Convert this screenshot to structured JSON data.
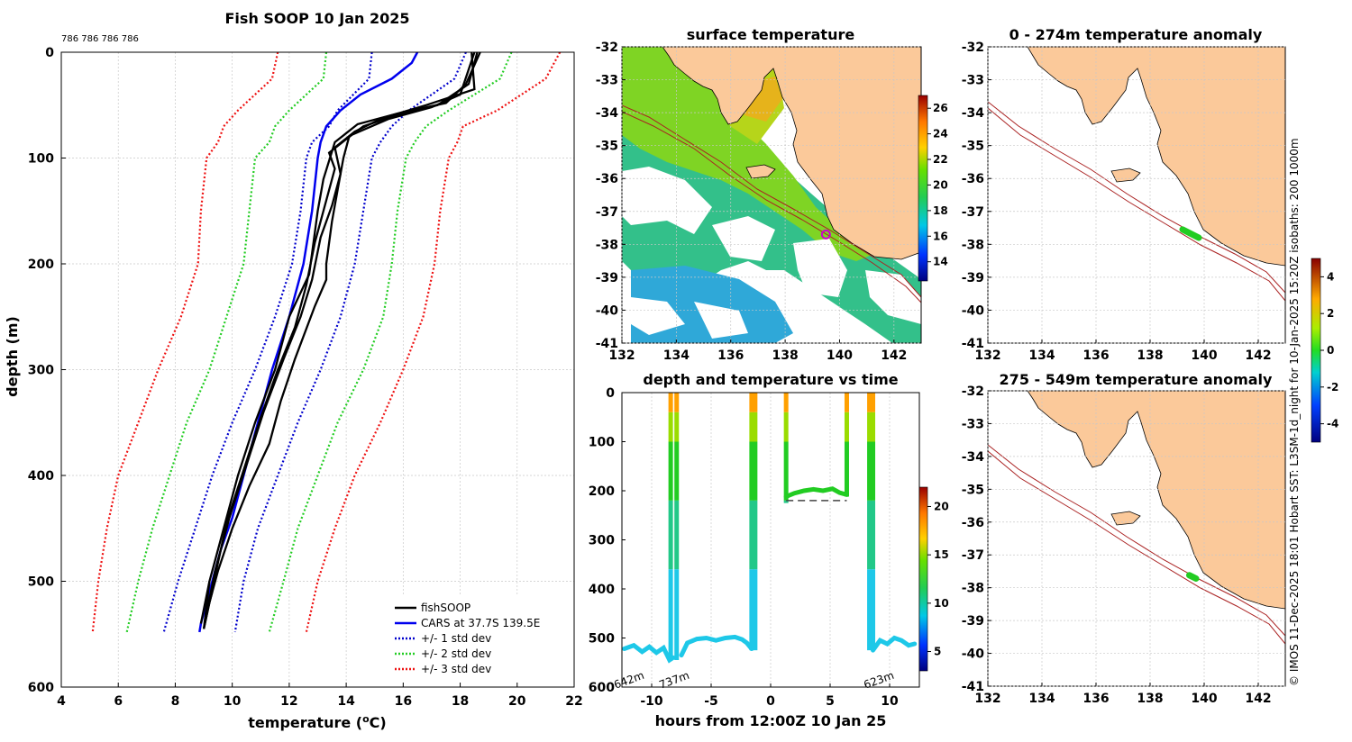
{
  "chart_data": [
    {
      "id": "profile",
      "type": "line",
      "title": "Fish SOOP 10 Jan 2025",
      "annotation": "786 786 786 786",
      "xlabel": "temperature (",
      "xlabel_sup": "o",
      "xlabel_end": "C)",
      "ylabel": "depth (m)",
      "xlim": [
        4,
        22
      ],
      "ylim": [
        600,
        0
      ],
      "xticks": [
        4,
        6,
        8,
        10,
        12,
        14,
        16,
        18,
        20,
        22
      ],
      "yticks": [
        0,
        100,
        200,
        300,
        400,
        500,
        600
      ],
      "legend": [
        "fishSOOP",
        "CARS at 37.7S 139.5E",
        "+/- 1 std dev",
        "+/- 2 std dev",
        "+/- 3 std dev"
      ],
      "colors": [
        "#000000",
        "#0000ee",
        "#0000cc",
        "#22cc22",
        "#ee1111"
      ],
      "cars": {
        "t": [
          16.5,
          16.3,
          15.6,
          14.5,
          13.8,
          13.3,
          13.1,
          13.0,
          12.8,
          12.5,
          12.0,
          11.4,
          10.9,
          10.4,
          10.0,
          9.6,
          9.3,
          9.1,
          8.9,
          8.85
        ],
        "d": [
          0,
          10,
          25,
          40,
          55,
          70,
          85,
          100,
          150,
          200,
          250,
          300,
          350,
          400,
          440,
          470,
          500,
          520,
          540,
          548
        ]
      },
      "std_depths": [
        0,
        25,
        55,
        70,
        85,
        100,
        150,
        200,
        250,
        300,
        350,
        400,
        450,
        500,
        548
      ],
      "std1_lo": [
        14.9,
        14.8,
        13.7,
        13.4,
        12.8,
        12.6,
        12.4,
        12.1,
        11.5,
        10.8,
        10.0,
        9.3,
        8.7,
        8.1,
        7.6
      ],
      "std1_hi": [
        18.2,
        17.8,
        16.2,
        15.6,
        15.2,
        14.9,
        14.6,
        14.3,
        13.8,
        13.1,
        12.3,
        11.6,
        10.9,
        10.4,
        10.1
      ],
      "std2_lo": [
        13.3,
        13.2,
        12.0,
        11.5,
        11.3,
        10.8,
        10.6,
        10.4,
        9.8,
        9.2,
        8.4,
        7.8,
        7.2,
        6.7,
        6.3
      ],
      "std2_hi": [
        19.8,
        19.4,
        17.6,
        16.8,
        16.4,
        16.1,
        15.8,
        15.6,
        15.3,
        14.6,
        13.7,
        13.0,
        12.3,
        11.8,
        11.3
      ],
      "std3_lo": [
        11.6,
        11.4,
        10.2,
        9.7,
        9.5,
        9.1,
        8.9,
        8.8,
        8.2,
        7.4,
        6.7,
        6.0,
        5.6,
        5.3,
        5.1
      ],
      "std3_hi": [
        21.5,
        21.0,
        19.3,
        18.1,
        17.9,
        17.6,
        17.3,
        17.1,
        16.7,
        16.0,
        15.2,
        14.3,
        13.6,
        13.0,
        12.6
      ],
      "fish": [
        {
          "t": [
            18.6,
            18.3,
            17.2,
            15.7,
            14.6,
            14.1,
            13.9,
            13.7,
            13.5,
            13.3,
            13.3,
            12.9,
            12.2,
            11.7,
            11.3,
            10.6,
            10.0,
            9.5,
            9.2,
            9.0,
            9.2
          ],
          "d": [
            0,
            30,
            50,
            60,
            70,
            80,
            100,
            130,
            160,
            200,
            215,
            240,
            290,
            330,
            370,
            410,
            450,
            490,
            520,
            545,
            500
          ]
        },
        {
          "t": [
            18.4,
            18.5,
            16.8,
            15.3,
            14.3,
            13.6,
            13.8,
            13.5,
            13.1,
            12.8,
            12.4,
            11.8,
            11.1,
            10.5,
            9.9,
            9.4,
            9.1,
            9.3
          ],
          "d": [
            0,
            35,
            50,
            62,
            75,
            90,
            115,
            145,
            175,
            215,
            250,
            290,
            340,
            390,
            440,
            490,
            530,
            510
          ]
        },
        {
          "t": [
            18.7,
            18.2,
            17.5,
            15.8,
            14.4,
            13.6,
            13.2,
            13.0,
            12.8,
            12.7,
            12.0,
            11.5,
            10.8,
            10.2,
            9.7,
            9.2,
            8.9
          ],
          "d": [
            0,
            30,
            48,
            58,
            68,
            85,
            120,
            150,
            190,
            210,
            250,
            300,
            350,
            400,
            450,
            500,
            540
          ]
        },
        {
          "t": [
            18.5,
            18.0,
            17.0,
            15.5,
            14.2,
            13.4,
            13.6,
            13.3,
            12.9,
            12.6,
            12.2,
            11.6,
            11.0,
            10.4,
            9.8,
            9.4,
            9.0
          ],
          "d": [
            0,
            40,
            52,
            63,
            78,
            95,
            110,
            140,
            180,
            220,
            260,
            300,
            345,
            395,
            445,
            495,
            545
          ]
        }
      ]
    },
    {
      "id": "sst_map",
      "type": "heatmap",
      "title": "surface temperature",
      "xlim": [
        132,
        143
      ],
      "ylim": [
        -41,
        -32
      ],
      "xticks": [
        132,
        134,
        136,
        138,
        140,
        142
      ],
      "yticks": [
        -32,
        -33,
        -34,
        -35,
        -36,
        -37,
        -38,
        -39,
        -40,
        -41
      ],
      "colorbar_ticks": [
        14,
        16,
        18,
        20,
        22,
        24,
        26
      ],
      "colorbar_range": [
        12.5,
        27
      ],
      "marker": {
        "lon": 139.5,
        "lat": -37.7
      }
    },
    {
      "id": "time_series",
      "type": "scatter",
      "title": "depth and temperature vs time",
      "xlabel": "hours from 12:00Z 10 Jan 25",
      "xlim": [
        -12.5,
        12.5
      ],
      "ylim": [
        600,
        0
      ],
      "xticks": [
        -10,
        -5,
        0,
        5,
        10
      ],
      "yticks": [
        0,
        100,
        200,
        300,
        400,
        500,
        600
      ],
      "colorbar_ticks": [
        5,
        10,
        15,
        20
      ],
      "colorbar_range": [
        3,
        22
      ],
      "annotations": [
        {
          "text": "642m",
          "x": -11.8
        },
        {
          "text": "737m",
          "x": -8.0
        },
        {
          "text": "623m",
          "x": 9.2
        }
      ],
      "dashed_depth": 220,
      "dashed_range": [
        1.3,
        6.4
      ]
    },
    {
      "id": "anom_shallow",
      "type": "heatmap",
      "title": "0 - 274m temperature anomaly",
      "xlim": [
        132,
        143
      ],
      "ylim": [
        -41,
        -32
      ],
      "xticks": [
        132,
        134,
        136,
        138,
        140,
        142
      ],
      "yticks": [
        -32,
        -33,
        -34,
        -35,
        -36,
        -37,
        -38,
        -39,
        -40,
        -41
      ],
      "track": {
        "lon_start": 139.2,
        "lon_end": 139.8,
        "lat_start": -37.55,
        "lat_end": -37.8
      }
    },
    {
      "id": "anom_deep",
      "type": "heatmap",
      "title": "275 - 549m temperature anomaly",
      "xlim": [
        132,
        143
      ],
      "ylim": [
        -41,
        -32
      ],
      "xticks": [
        132,
        134,
        136,
        138,
        140,
        142
      ],
      "yticks": [
        -32,
        -33,
        -34,
        -35,
        -36,
        -37,
        -38,
        -39,
        -40,
        -41
      ],
      "colorbar_ticks": [
        -4,
        -2,
        0,
        2,
        4
      ],
      "colorbar_range": [
        -5,
        5
      ],
      "track": {
        "lon_start": 139.45,
        "lon_end": 139.7,
        "lat_start": -37.62,
        "lat_end": -37.72
      }
    }
  ],
  "credit": "© IMOS 11-Dec-2025 18:01 Hobart SST: L3SM-1d_night for 10-Jan-2025 15:20Z isobaths: 200  1000m",
  "colors": {
    "land": "#fbc99a",
    "std1": "#0000cc",
    "std2": "#22cc22",
    "std3": "#ee1111",
    "cars": "#0000ee",
    "fish": "#000000",
    "isobath": "#aa2222"
  }
}
